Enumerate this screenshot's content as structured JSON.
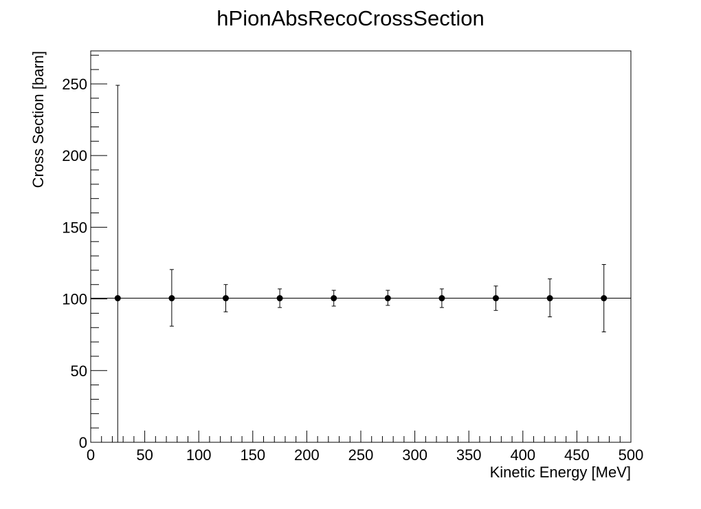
{
  "chart_data": {
    "type": "scatter",
    "title": "hPionAbsRecoCrossSection",
    "xlabel": "Kinetic Energy [MeV]",
    "ylabel": "Cross Section [barn]",
    "xlim": [
      0,
      500
    ],
    "ylim": [
      0,
      273
    ],
    "x_ticks": [
      "0",
      "50",
      "100",
      "150",
      "200",
      "250",
      "300",
      "350",
      "400",
      "450",
      "500"
    ],
    "y_ticks": [
      "0",
      "50",
      "100",
      "150",
      "200",
      "250"
    ],
    "grid": false,
    "legend": "none",
    "colors": {
      "marker": "#000000",
      "axis": "#000000",
      "background": "#ffffff"
    },
    "horizontal_line": {
      "y": 100.5
    },
    "series": [
      {
        "x": [
          25,
          75,
          125,
          175,
          225,
          275,
          325,
          375,
          425,
          475
        ],
        "y": [
          100.5,
          100.5,
          100.5,
          100.5,
          100.5,
          100.5,
          100.5,
          100.5,
          100.5,
          100.5
        ],
        "err_low": [
          100.5,
          19.5,
          9.5,
          6.5,
          5.5,
          5.0,
          6.5,
          8.5,
          13.0,
          23.5
        ],
        "err_high": [
          148.5,
          20.0,
          9.5,
          6.5,
          5.5,
          5.5,
          6.5,
          8.5,
          13.5,
          23.5
        ]
      }
    ]
  }
}
